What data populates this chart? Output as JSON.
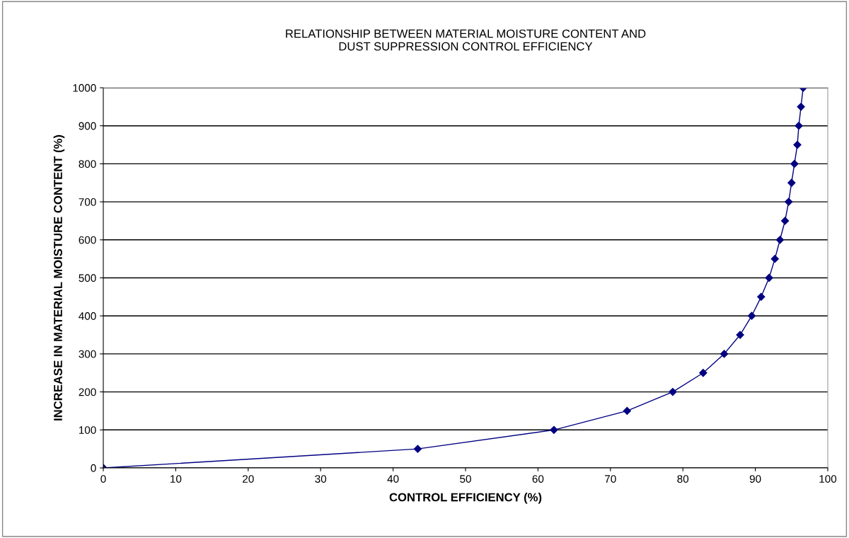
{
  "chart_data": {
    "type": "line",
    "title": "RELATIONSHIP BETWEEN MATERIAL MOISTURE CONTENT AND\nDUST SUPPRESSION CONTROL EFFICIENCY",
    "xlabel": "CONTROL EFFICIENCY (%)",
    "ylabel": "INCREASE IN MATERIAL MOISTURE CONTENT (%)",
    "x": [
      0,
      43.4,
      62.2,
      72.3,
      78.6,
      82.8,
      85.7,
      87.9,
      89.5,
      90.8,
      91.9,
      92.7,
      93.4,
      94.1,
      94.6,
      95.0,
      95.4,
      95.8,
      96.0,
      96.3,
      96.6
    ],
    "series": [
      {
        "color": "#000080",
        "values": [
          0,
          50,
          100,
          150,
          200,
          250,
          300,
          350,
          400,
          450,
          500,
          550,
          600,
          650,
          700,
          750,
          800,
          850,
          900,
          950,
          1000
        ]
      }
    ],
    "xlim": [
      0,
      100
    ],
    "xticks": [
      0,
      10,
      20,
      30,
      40,
      50,
      60,
      70,
      80,
      90,
      100
    ],
    "ylim": [
      0,
      1000
    ],
    "yticks": [
      0,
      100,
      200,
      300,
      400,
      500,
      600,
      700,
      800,
      900,
      1000
    ],
    "grid": "y",
    "marker": "diamond",
    "line_style": "solid",
    "legend": false
  }
}
